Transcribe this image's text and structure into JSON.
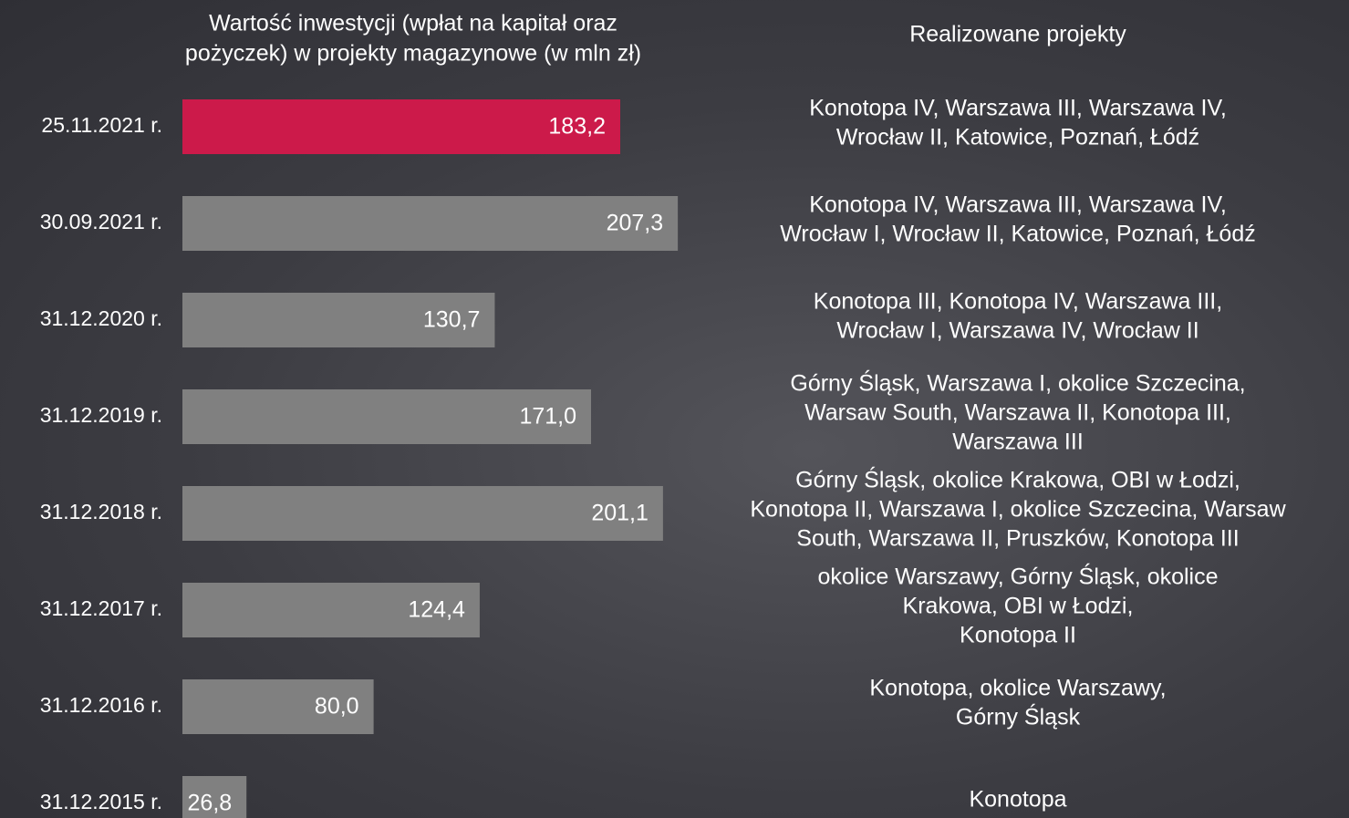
{
  "chart_data": {
    "type": "bar",
    "title": [
      "Wartość inwestycji (wpłat na kapitał oraz",
      "pożyczek) w projekty magazynowe (w mln zł)"
    ],
    "projects_header": "Realizowane projekty",
    "categories": [
      "25.11.2021 r.",
      "30.09.2021 r.",
      "31.12.2020 r.",
      "31.12.2019 r.",
      "31.12.2018 r.",
      "31.12.2017 r.",
      "31.12.2016 r.",
      "31.12.2015 r."
    ],
    "values": [
      183.2,
      207.3,
      130.7,
      171.0,
      201.1,
      124.4,
      80.0,
      26.8
    ],
    "value_labels": [
      "183,2",
      "207,3",
      "130,7",
      "171,0",
      "201,1",
      "124,4",
      "80,0",
      "26,8"
    ],
    "colors": [
      "#cc1a4a",
      "#808080",
      "#808080",
      "#808080",
      "#808080",
      "#808080",
      "#808080",
      "#808080"
    ],
    "projects": [
      [
        "Konotopa IV, Warszawa III, Warszawa IV,",
        "Wrocław II, Katowice, Poznań, Łódź"
      ],
      [
        "Konotopa IV, Warszawa III, Warszawa IV,",
        "Wrocław I, Wrocław II, Katowice, Poznań, Łódź"
      ],
      [
        "Konotopa III, Konotopa IV, Warszawa III,",
        "Wrocław I, Warszawa IV, Wrocław II"
      ],
      [
        "Górny Śląsk, Warszawa I, okolice Szczecina,",
        "Warsaw South, Warszawa II, Konotopa III,",
        "Warszawa III"
      ],
      [
        "Górny Śląsk, okolice Krakowa, OBI w Łodzi,",
        "Konotopa II, Warszawa I, okolice Szczecina, Warsaw",
        "South, Warszawa II, Pruszków, Konotopa III"
      ],
      [
        "okolice Warszawy, Górny Śląsk, okolice",
        "Krakowa, OBI w Łodzi,",
        "Konotopa II"
      ],
      [
        "Konotopa, okolice Warszawy,",
        "Górny Śląsk"
      ],
      [
        "Konotopa"
      ]
    ]
  }
}
